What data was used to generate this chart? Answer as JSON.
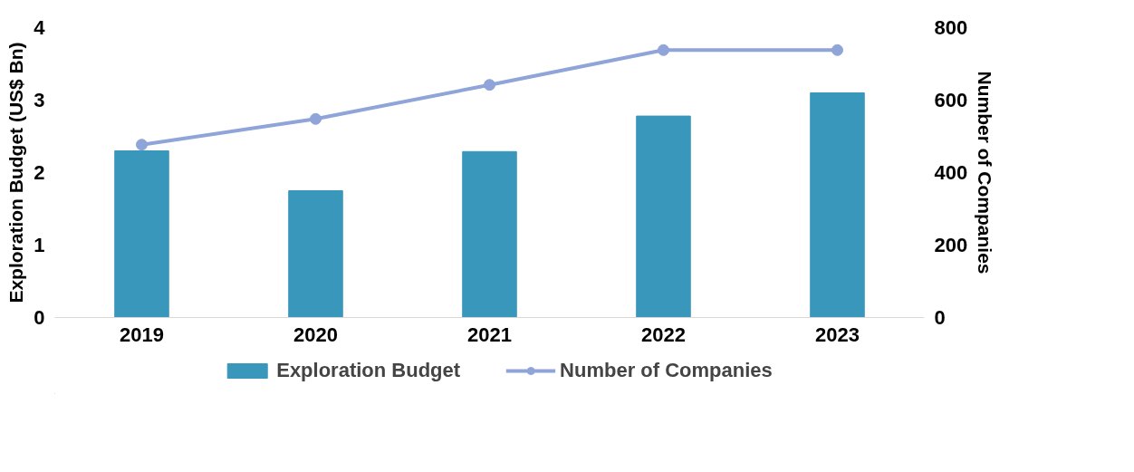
{
  "chart_data": {
    "type": "bar",
    "categories": [
      "2019",
      "2020",
      "2021",
      "2022",
      "2023"
    ],
    "ylabel": "Exploration Budget (US$ Bn)",
    "y2label": "Number of Companies",
    "ylim": [
      0,
      4
    ],
    "yticks": [
      0,
      1,
      2,
      3,
      4
    ],
    "y2lim": [
      0,
      800
    ],
    "y2ticks": [
      0,
      200,
      400,
      600,
      800
    ],
    "grid": false,
    "legend": "bottom",
    "series": [
      {
        "name": "Exploration Budget",
        "color": "#3a97bc",
        "values": [
          2.3,
          1.75,
          2.29,
          2.78,
          3.1
        ]
      },
      {
        "name": "Number of Companies",
        "type": "line",
        "axis": "y2",
        "marker": "circle",
        "color": "#8fa4d8",
        "values": [
          477,
          548,
          642,
          738,
          738
        ]
      }
    ]
  }
}
